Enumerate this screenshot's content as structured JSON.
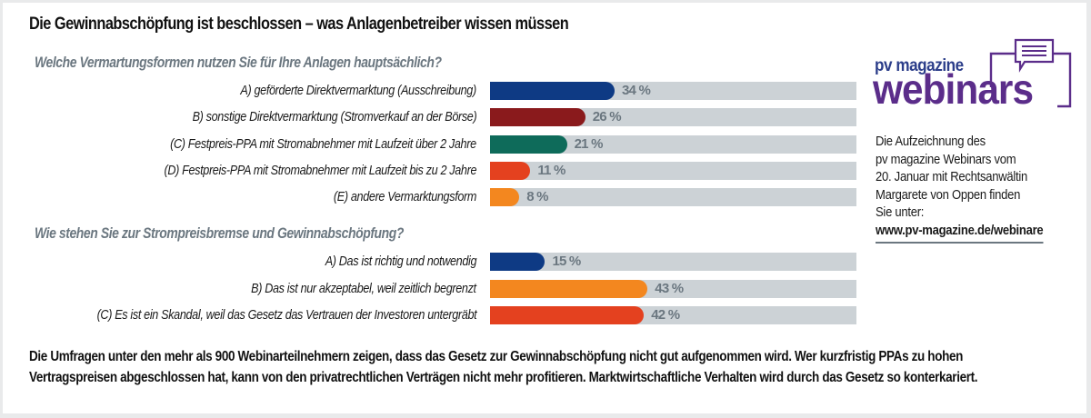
{
  "title": "Die Gewinnabschöpfung ist beschlossen – was Anlagenbetreiber wissen müssen",
  "colors": {
    "navy": "#0e3a84",
    "darkred": "#8a1a1c",
    "teal": "#0e6b5a",
    "red": "#e4411f",
    "orange": "#f3871f",
    "track": "#ccd2d6",
    "question_text": "#6b7780",
    "logo_purple": "#5b2d8a"
  },
  "chart_data": [
    {
      "type": "bar",
      "orientation": "horizontal",
      "title": "Welche Vermartungsformen nutzen Sie für Ihre Anlagen hauptsächlich?",
      "categories": [
        "A) geförderte Direktvermarktung (Ausschreibung)",
        "B) sonstige Direktvermarktung (Stromverkauf an der Börse)",
        "(C) Festpreis-PPA mit Stromabnehmer mit Laufzeit über 2 Jahre",
        "(D) Festpreis-PPA mit Stromabnehmer mit Laufzeit bis zu 2 Jahre",
        "(E) andere Vermarktungsform"
      ],
      "values": [
        34,
        26,
        21,
        11,
        8
      ],
      "labels": [
        "34 %",
        "26 %",
        "21 %",
        "11 %",
        "8 %"
      ],
      "colors": [
        "#0e3a84",
        "#8a1a1c",
        "#0e6b5a",
        "#e4411f",
        "#f3871f"
      ],
      "xlim": [
        0,
        100
      ],
      "unit": "%",
      "grid": false,
      "legend": "none"
    },
    {
      "type": "bar",
      "orientation": "horizontal",
      "title": "Wie stehen Sie zur Strompreisbremse und Gewinnabschöpfung?",
      "categories": [
        "A) Das ist richtig und notwendig",
        "B) Das ist nur akzeptabel, weil zeitlich begrenzt",
        "(C) Es ist ein Skandal, weil das Gesetz das Vertrauen der Investoren untergräbt"
      ],
      "values": [
        15,
        43,
        42
      ],
      "labels": [
        "15 %",
        "43 %",
        "42 %"
      ],
      "colors": [
        "#0e3a84",
        "#f3871f",
        "#e4411f"
      ],
      "xlim": [
        0,
        100
      ],
      "unit": "%",
      "grid": false,
      "legend": "none"
    }
  ],
  "logo": {
    "line1": "pv magazine",
    "line2": "webinars",
    "icon": "chat-bubble-icon"
  },
  "info": {
    "lines": [
      "Die Aufzeichnung des",
      "pv magazine Webinars vom",
      "20. Januar mit Rechtsanwältin",
      "Margarete von Oppen finden",
      "Sie unter:"
    ],
    "link": "www.pv-magazine.de/webinare"
  },
  "footer": {
    "lines": [
      "Die Umfragen unter den mehr als 900 Webinarteilnehmern zeigen, dass das Gesetz zur Gewinnabschöpfung nicht gut aufgenommen wird. Wer kurzfristig PPAs zu hohen",
      "Vertragspreisen abgeschlossen hat, kann von den privatrechtlichen Verträgen nicht mehr profitieren. Marktwirtschaftliche Verhalten wird durch das Gesetz so konterkariert."
    ]
  }
}
